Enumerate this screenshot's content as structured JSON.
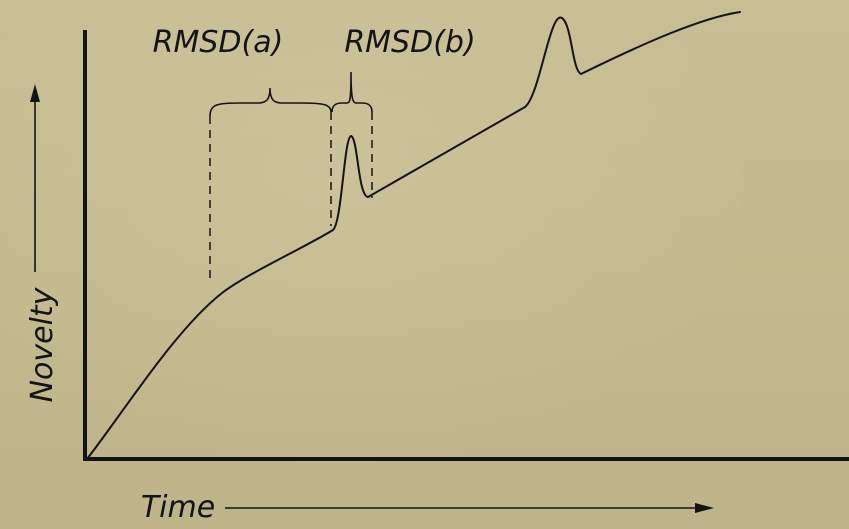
{
  "labels": {
    "rmsd_a": "RMSD(a)",
    "rmsd_b": "RMSD(b)",
    "y_axis": "Novelty",
    "x_axis": "Time"
  },
  "colors": {
    "background": "#c5bb90",
    "ink": "#141414"
  }
}
